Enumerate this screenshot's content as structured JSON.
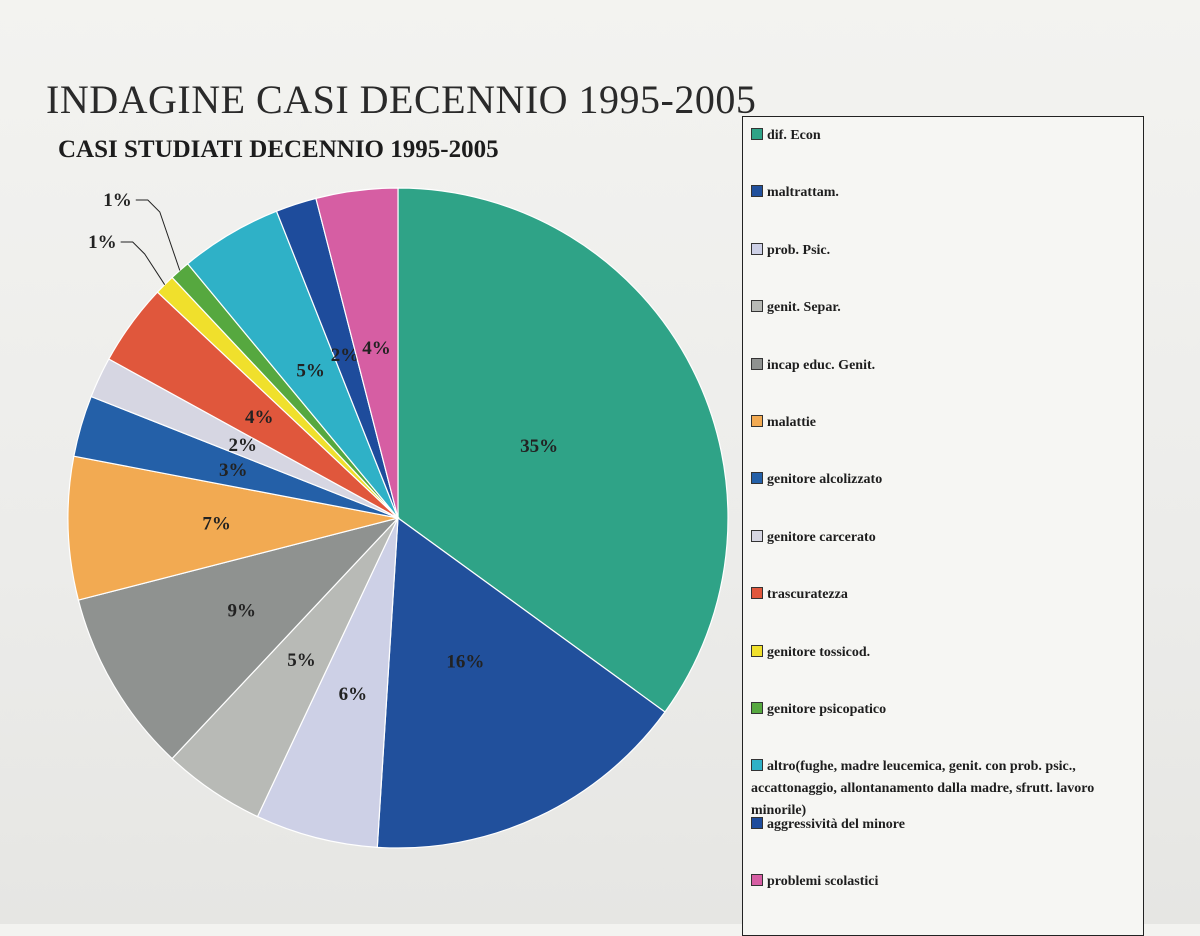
{
  "page": {
    "title": "INDAGINE CASI DECENNIO 1995-2005"
  },
  "chart_data": {
    "type": "pie",
    "title": "CASI STUDIATI DECENNIO 1995-2005",
    "legend_position": "right",
    "slices": [
      {
        "label": "dif. Econ",
        "value": 35,
        "value_label": "35%",
        "color": "#2fa387"
      },
      {
        "label": "maltrattam.",
        "value": 16,
        "value_label": "16%",
        "color": "#21509c"
      },
      {
        "label": "prob. Psic.",
        "value": 6,
        "value_label": "6%",
        "color": "#cdd0e6"
      },
      {
        "label": "genit. Separ.",
        "value": 5,
        "value_label": "5%",
        "color": "#b8bab6"
      },
      {
        "label": "incap educ. Genit.",
        "value": 9,
        "value_label": "9%",
        "color": "#8f9290"
      },
      {
        "label": "malattie",
        "value": 7,
        "value_label": "7%",
        "color": "#f2aa52"
      },
      {
        "label": "genitore alcolizzato",
        "value": 3,
        "value_label": "3%",
        "color": "#2460a8"
      },
      {
        "label": "genitore  carcerato",
        "value": 2,
        "value_label": "2%",
        "color": "#d6d6e2"
      },
      {
        "label": "trascuratezza",
        "value": 4,
        "value_label": "4%",
        "color": "#e0573c"
      },
      {
        "label": "genitore tossicod.",
        "value": 1,
        "value_label": "1%",
        "color": "#f0e02c"
      },
      {
        "label": "genitore psicopatico",
        "value": 1,
        "value_label": "1%",
        "color": "#56a83f"
      },
      {
        "label": "altro(fughe, madre leucemica, genit. con prob. psic., accattonaggio, allontanamento dalla madre, sfrutt. lavoro minorile)",
        "value": 5,
        "value_label": "5%",
        "color": "#2fb1c7"
      },
      {
        "label": "aggressività del minore",
        "value": 2,
        "value_label": "2%",
        "color": "#1e4c9c"
      },
      {
        "label": "problemi scolastici",
        "value": 4,
        "value_label": "4%",
        "color": "#d65ea3"
      }
    ]
  }
}
